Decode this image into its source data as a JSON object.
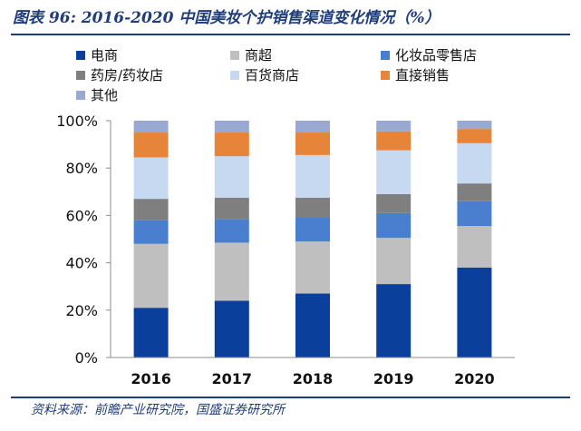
{
  "title": "图表 96: 2016-2020 中国美妆个护销售渠道变化情况（%）",
  "source": "资料来源：前瞻产业研究院，国盛证券研究所",
  "chart_data": {
    "type": "bar",
    "stacked": true,
    "categories": [
      "2016",
      "2017",
      "2018",
      "2019",
      "2020"
    ],
    "ylim": [
      0,
      100
    ],
    "yticks": [
      "0%",
      "20%",
      "40%",
      "60%",
      "80%",
      "100%"
    ],
    "ytick_values": [
      0,
      20,
      40,
      60,
      80,
      100
    ],
    "legend_position": "top",
    "grid": false,
    "series": [
      {
        "name": "电商",
        "color": "#0b3f9c",
        "values": [
          21,
          24,
          27,
          31,
          38
        ]
      },
      {
        "name": "商超",
        "color": "#bfbfbf",
        "values": [
          27,
          24.5,
          22,
          19.5,
          17.5
        ]
      },
      {
        "name": "化妆品零售店",
        "color": "#4a7fd0",
        "values": [
          10,
          10,
          10,
          10.5,
          10.5
        ]
      },
      {
        "name": "药房/药妆店",
        "color": "#7f7f7f",
        "values": [
          9,
          9,
          8.5,
          8,
          7.5
        ]
      },
      {
        "name": "百货商店",
        "color": "#c6d9f1",
        "values": [
          17.5,
          17.5,
          18,
          18.5,
          17
        ]
      },
      {
        "name": "直接销售",
        "color": "#e6843a",
        "values": [
          10.5,
          10,
          9.5,
          8,
          6
        ]
      },
      {
        "name": "其他",
        "color": "#9aa9d2",
        "values": [
          5,
          5,
          5,
          4.5,
          3.5
        ]
      }
    ]
  }
}
